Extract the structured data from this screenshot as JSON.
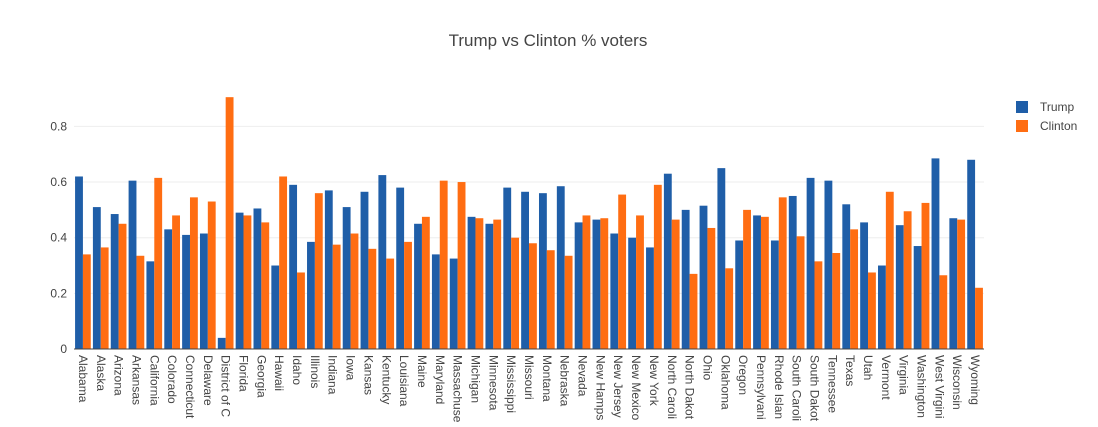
{
  "chart_data": {
    "type": "bar",
    "title": "Trump vs Clinton % voters",
    "xlabel": "",
    "ylabel": "",
    "ylim": [
      0,
      0.92
    ],
    "yticks": [
      0,
      0.2,
      0.4,
      0.6,
      0.8
    ],
    "ytick_labels": [
      "0",
      "0.2",
      "0.4",
      "0.6",
      "0.8"
    ],
    "grid": true,
    "legend_position": "top-right",
    "colors": {
      "Trump": "#1f5ea8",
      "Clinton": "#ff6d12"
    },
    "categories": [
      "Alabama",
      "Alaska",
      "Arizona",
      "Arkansas",
      "California",
      "Colorado",
      "Connecticut",
      "Delaware",
      "District of C",
      "Florida",
      "Georgia",
      "Hawaii",
      "Idaho",
      "Illinois",
      "Indiana",
      "Iowa",
      "Kansas",
      "Kentucky",
      "Louisiana",
      "Maine",
      "Maryland",
      "Massachuse",
      "Michigan",
      "Minnesota",
      "Mississippi",
      "Missouri",
      "Montana",
      "Nebraska",
      "Nevada",
      "New Hamps",
      "New Jersey",
      "New Mexico",
      "New York",
      "North Caroli",
      "North Dakot",
      "Ohio",
      "Oklahoma",
      "Oregon",
      "Pennsylvani",
      "Rhode Islan",
      "South Caroli",
      "South Dakot",
      "Tennessee",
      "Texas",
      "Utah",
      "Vermont",
      "Virginia",
      "Washington",
      "West Virgini",
      "Wisconsin",
      "Wyoming"
    ],
    "series": [
      {
        "name": "Trump",
        "values": [
          0.62,
          0.51,
          0.485,
          0.605,
          0.315,
          0.43,
          0.41,
          0.415,
          0.04,
          0.49,
          0.505,
          0.3,
          0.59,
          0.385,
          0.57,
          0.51,
          0.565,
          0.625,
          0.58,
          0.45,
          0.34,
          0.325,
          0.475,
          0.45,
          0.58,
          0.565,
          0.56,
          0.585,
          0.455,
          0.465,
          0.415,
          0.4,
          0.365,
          0.63,
          0.5,
          0.515,
          0.65,
          0.39,
          0.48,
          0.39,
          0.55,
          0.615,
          0.605,
          0.52,
          0.455,
          0.3,
          0.445,
          0.37,
          0.685,
          0.47,
          0.68
        ]
      },
      {
        "name": "Clinton",
        "values": [
          0.34,
          0.365,
          0.45,
          0.335,
          0.615,
          0.48,
          0.545,
          0.53,
          0.905,
          0.48,
          0.455,
          0.62,
          0.275,
          0.56,
          0.375,
          0.415,
          0.36,
          0.325,
          0.385,
          0.475,
          0.605,
          0.6,
          0.47,
          0.465,
          0.4,
          0.38,
          0.355,
          0.335,
          0.48,
          0.47,
          0.555,
          0.48,
          0.59,
          0.465,
          0.27,
          0.435,
          0.29,
          0.5,
          0.475,
          0.545,
          0.405,
          0.315,
          0.345,
          0.43,
          0.275,
          0.565,
          0.495,
          0.525,
          0.265,
          0.465,
          0.22
        ]
      }
    ]
  }
}
